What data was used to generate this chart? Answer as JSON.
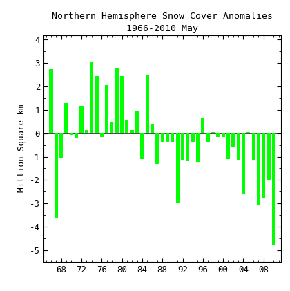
{
  "title": "Northern Hemisphere Snow Cover Anomalies",
  "subtitle": "1966-2010 May",
  "ylabel": "Million Square km",
  "bar_color": "#00ff00",
  "background_color": "#ffffff",
  "ylim": [
    -5.5,
    4.2
  ],
  "yticks": [
    -5,
    -4,
    -3,
    -2,
    -1,
    0,
    1,
    2,
    3,
    4
  ],
  "xtick_positions": [
    68,
    72,
    76,
    80,
    84,
    88,
    92,
    96,
    100,
    104,
    108
  ],
  "xtick_labels": [
    "68",
    "72",
    "76",
    "80",
    "84",
    "88",
    "92",
    "96",
    "00",
    "04",
    "08"
  ],
  "xlim": [
    64.5,
    111.5
  ],
  "years": [
    66,
    67,
    68,
    69,
    70,
    71,
    72,
    73,
    74,
    75,
    76,
    77,
    78,
    79,
    80,
    81,
    82,
    83,
    84,
    85,
    86,
    87,
    88,
    89,
    90,
    91,
    92,
    93,
    94,
    95,
    96,
    97,
    98,
    99,
    100,
    101,
    102,
    103,
    104,
    105,
    106,
    107,
    108,
    109,
    110
  ],
  "values": [
    2.75,
    -3.6,
    -1.05,
    1.3,
    -0.1,
    -0.2,
    1.15,
    0.15,
    3.05,
    2.45,
    -0.15,
    2.05,
    0.5,
    2.8,
    2.45,
    0.55,
    0.15,
    0.95,
    -1.1,
    2.5,
    0.4,
    -1.3,
    -0.35,
    -0.35,
    -0.35,
    -2.95,
    -1.15,
    -1.2,
    -0.35,
    -1.25,
    0.65,
    -0.35,
    0.05,
    -0.15,
    -0.15,
    -1.1,
    -0.6,
    -1.15,
    -2.6,
    0.05,
    -1.15,
    -3.05,
    -2.8,
    -2.0,
    -4.8
  ],
  "title_fontsize": 9.5,
  "subtitle_fontsize": 9.5,
  "tick_labelsize": 9,
  "ylabel_fontsize": 9,
  "bar_width": 0.7
}
